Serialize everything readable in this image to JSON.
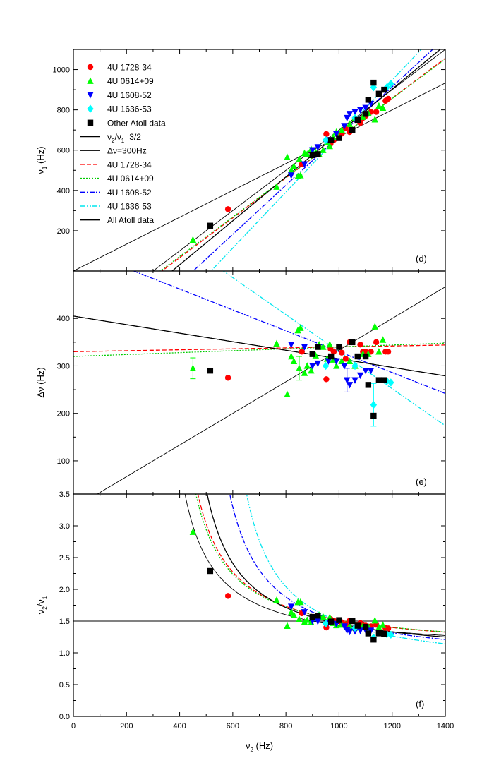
{
  "chart_data": {
    "type": "scatter",
    "shared_x": {
      "label_main": "ν",
      "label_sub": "2",
      "label_unit": " (Hz)",
      "lim": [
        0,
        1400
      ],
      "ticks": [
        0,
        200,
        400,
        600,
        800,
        1000,
        1200,
        1400
      ]
    },
    "legend": {
      "placement": "top-left of panel (d)",
      "markers": [
        {
          "label": "4U 1728-34",
          "shape": "circle",
          "color": "#ff0000"
        },
        {
          "label": "4U 0614+09",
          "shape": "triangle-up",
          "color": "#00ff00"
        },
        {
          "label": "4U 1608-52",
          "shape": "triangle-down",
          "color": "#0000ff"
        },
        {
          "label": "4U 1636-53",
          "shape": "diamond",
          "color": "#00ffff"
        },
        {
          "label": "Other Atoll data",
          "shape": "square",
          "color": "#000000"
        }
      ],
      "lines": [
        {
          "label_pre": "ν",
          "label_sub1": "2",
          "label_mid": "/ν",
          "label_sub2": "1",
          "label_post": "=3/2",
          "color": "#000000",
          "dash": ""
        },
        {
          "label": "Δν=300Hz",
          "color": "#000000",
          "dash": ""
        },
        {
          "label": "4U 1728-34",
          "color": "#ff0000",
          "dash": "6,3"
        },
        {
          "label": "4U 0614+09",
          "color": "#00cc00",
          "dash": "2,2"
        },
        {
          "label": "4U 1608-52",
          "color": "#0000ff",
          "dash": "7,2,2,2"
        },
        {
          "label": "4U 1636-53",
          "color": "#00e5ee",
          "dash": "7,2,2,2,2,2"
        },
        {
          "label": "All Atoll data",
          "color": "#000000",
          "dash": ""
        }
      ]
    },
    "panels": [
      {
        "id": "d",
        "panel_label": "(d)",
        "ylabel_main": "ν",
        "ylabel_sub": "1",
        "ylabel_unit": " (Hz)",
        "ylim": [
          0,
          1100
        ],
        "yticks": [
          200,
          400,
          600,
          800,
          1000
        ],
        "kind": "nu1"
      },
      {
        "id": "e",
        "panel_label": "(e)",
        "ylabel_main": "Δν",
        "ylabel_sub": "",
        "ylabel_unit": " (Hz)",
        "ylim": [
          30,
          500
        ],
        "yticks": [
          100,
          200,
          300,
          400
        ],
        "kind": "dnu"
      },
      {
        "id": "f",
        "panel_label": "(f)",
        "ylabel_main": "ν",
        "ylabel_sub": "2",
        "ylabel_mid": "/ν",
        "ylabel_sub2": "1",
        "ylim": [
          0,
          3.5
        ],
        "yticks": [
          0.0,
          0.5,
          1.0,
          1.5,
          2.0,
          2.5,
          3.0,
          3.5
        ],
        "ytick_decimals": 1,
        "kind": "ratio"
      }
    ],
    "fits": [
      {
        "name": "4U 1728-34",
        "slope": 0.99,
        "intercept": -330,
        "color": "#ff0000",
        "dash": "6,3"
      },
      {
        "name": "4U 0614+09",
        "slope": 0.98,
        "intercept": -320,
        "color": "#00cc00",
        "dash": "2,2"
      },
      {
        "name": "4U 1608-52",
        "slope": 1.22,
        "intercept": -550,
        "color": "#0000ff",
        "dash": "7,2,2,2"
      },
      {
        "name": "4U 1636-53",
        "slope": 1.39,
        "intercept": -720,
        "color": "#00e5ee",
        "dash": "7,2,2,2,2,2"
      },
      {
        "name": "All Atoll data",
        "slope": 1.09,
        "intercept": -405,
        "color": "#000000",
        "dash": ""
      }
    ],
    "reference_lines": {
      "ratio": 1.5,
      "delta_nu": 300
    },
    "series": [
      {
        "name": "4U 1728-34",
        "shape": "circle",
        "color": "#ff0000",
        "points": [
          [
            582,
            307
          ],
          [
            952,
            680
          ],
          [
            968,
            632
          ],
          [
            980,
            650
          ],
          [
            1010,
            682
          ],
          [
            1025,
            710
          ],
          [
            1040,
            690
          ],
          [
            1080,
            735
          ],
          [
            1100,
            770
          ],
          [
            1120,
            790
          ],
          [
            1140,
            790
          ],
          [
            1175,
            845
          ],
          [
            1185,
            855
          ],
          [
            1090,
            760
          ],
          [
            860,
            530
          ]
        ]
      },
      {
        "name": "4U 0614+09",
        "shape": "triangle-up",
        "color": "#00ff00",
        "points": [
          [
            450,
            155
          ],
          [
            765,
            418
          ],
          [
            805,
            565
          ],
          [
            820,
            500
          ],
          [
            830,
            520
          ],
          [
            845,
            470
          ],
          [
            855,
            475
          ],
          [
            870,
            585
          ],
          [
            880,
            580
          ],
          [
            895,
            605
          ],
          [
            912,
            590
          ],
          [
            925,
            580
          ],
          [
            940,
            600
          ],
          [
            955,
            640
          ],
          [
            965,
            620
          ],
          [
            978,
            665
          ],
          [
            990,
            690
          ],
          [
            1010,
            700
          ],
          [
            1040,
            730
          ],
          [
            1060,
            760
          ],
          [
            1090,
            765
          ],
          [
            1110,
            785
          ],
          [
            1135,
            752
          ],
          [
            1150,
            820
          ],
          [
            1165,
            810
          ],
          [
            850,
            555
          ]
        ]
      },
      {
        "name": "4U 1608-52",
        "shape": "triangle-down",
        "color": "#0000ff",
        "points": [
          [
            820,
            475
          ],
          [
            870,
            530
          ],
          [
            900,
            600
          ],
          [
            920,
            615
          ],
          [
            960,
            650
          ],
          [
            990,
            680
          ],
          [
            1020,
            720
          ],
          [
            1030,
            760
          ],
          [
            1040,
            780
          ],
          [
            1060,
            790
          ],
          [
            1080,
            800
          ],
          [
            1100,
            810
          ],
          [
            1120,
            830
          ]
        ]
      },
      {
        "name": "4U 1636-53",
        "shape": "diamond",
        "color": "#00ffff",
        "points": [
          [
            950,
            650
          ],
          [
            1060,
            760
          ],
          [
            1130,
            912
          ],
          [
            1180,
            912
          ],
          [
            1195,
            930
          ]
        ]
      },
      {
        "name": "Other Atoll data",
        "shape": "square",
        "color": "#000000",
        "points": [
          [
            515,
            225
          ],
          [
            900,
            575
          ],
          [
            920,
            580
          ],
          [
            970,
            650
          ],
          [
            1000,
            660
          ],
          [
            1050,
            700
          ],
          [
            1070,
            750
          ],
          [
            1100,
            780
          ],
          [
            1110,
            850
          ],
          [
            1130,
            935
          ],
          [
            1170,
            900
          ],
          [
            1150,
            880
          ]
        ]
      }
    ],
    "errorbar_points": [
      {
        "series": "4U 0614+09",
        "nu2": 450,
        "dnu_err": 22
      },
      {
        "series": "4U 0614+09",
        "nu2": 850,
        "dnu_err": 25
      },
      {
        "series": "4U 1608-52",
        "nu2": 1035,
        "dnu_err": 25
      },
      {
        "series": "4U 1636-53",
        "nu2": 1130,
        "dnu_err": 45
      }
    ]
  }
}
